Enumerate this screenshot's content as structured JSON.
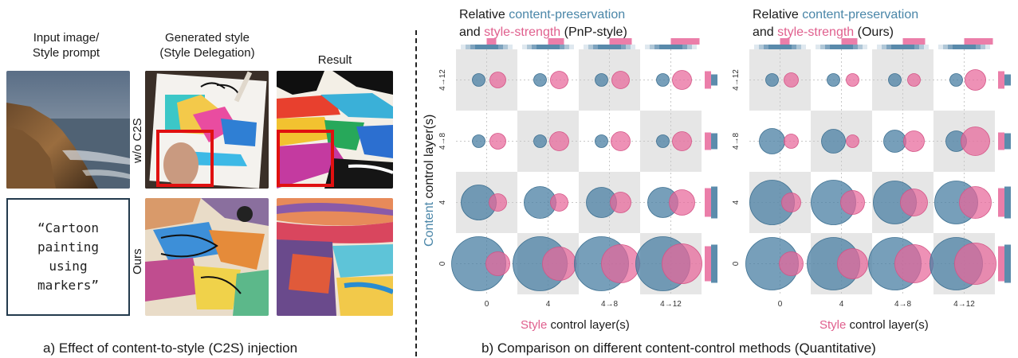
{
  "panel_a": {
    "headers": {
      "input": [
        "Input image/",
        "Style prompt"
      ],
      "generated": [
        "Generated style",
        "(Style Delegation)"
      ],
      "result": "Result"
    },
    "row_labels": {
      "top": "w/o C2S",
      "bottom": "Ours"
    },
    "prompt_lines": [
      "“Cartoon",
      "painting",
      "using",
      "markers”"
    ],
    "caption": "a) Effect of content-to-style (C2S) injection"
  },
  "panel_b": {
    "title_prefix": "Relative",
    "title_content": "content-preservation",
    "title_and": "and",
    "title_style": "style-strength",
    "left_method": "(PnP-style)",
    "right_method": "(Ours)",
    "y_label_colored": "Content",
    "y_label_rest": "control layer(s)",
    "x_label_colored": "Style",
    "x_label_rest": "control layer(s)",
    "caption": "b) Comparison on different content-control methods (Quantitative)",
    "colors": {
      "content": "#4a7fa3",
      "style": "#e8679a",
      "grid_shade": "#e6e6e6"
    }
  },
  "chart_data": [
    {
      "type": "scatter",
      "title": "Relative content-preservation and style-strength (PnP-style)",
      "xlabel": "Style control layer(s)",
      "ylabel": "Content control layer(s)",
      "x_categories": [
        "0",
        "4",
        "4→8",
        "4→12"
      ],
      "y_categories": [
        "0",
        "4",
        "4→8",
        "4→12"
      ],
      "series": [
        {
          "name": "content-preservation",
          "values": [
            [
              34,
              34,
              34,
              34
            ],
            [
              22,
              20,
              19,
              19
            ],
            [
              8,
              8,
              8,
              8
            ],
            [
              8,
              8,
              8,
              8
            ]
          ]
        },
        {
          "name": "style-strength",
          "values": [
            [
              15,
              21,
              24,
              25
            ],
            [
              11,
              11,
              13,
              16
            ],
            [
              10,
              12,
              12,
              12
            ],
            [
              10,
              11,
              11,
              12
            ]
          ]
        }
      ]
    },
    {
      "type": "scatter",
      "title": "Relative content-preservation and style-strength (Ours)",
      "xlabel": "Style control layer(s)",
      "ylabel": "Content control layer(s)",
      "x_categories": [
        "0",
        "4",
        "4→8",
        "4→12"
      ],
      "y_categories": [
        "0",
        "4",
        "4→8",
        "4→12"
      ],
      "series": [
        {
          "name": "content-preservation",
          "values": [
            [
              33,
              33,
              33,
              33
            ],
            [
              28,
              28,
              27,
              27
            ],
            [
              16,
              15,
              14,
              13
            ],
            [
              8,
              8,
              8,
              8
            ]
          ]
        },
        {
          "name": "style-strength",
          "values": [
            [
              15,
              19,
              24,
              26
            ],
            [
              12,
              15,
              17,
              20
            ],
            [
              9,
              8,
              13,
              18
            ],
            [
              9,
              8,
              8,
              13
            ]
          ]
        }
      ]
    }
  ]
}
